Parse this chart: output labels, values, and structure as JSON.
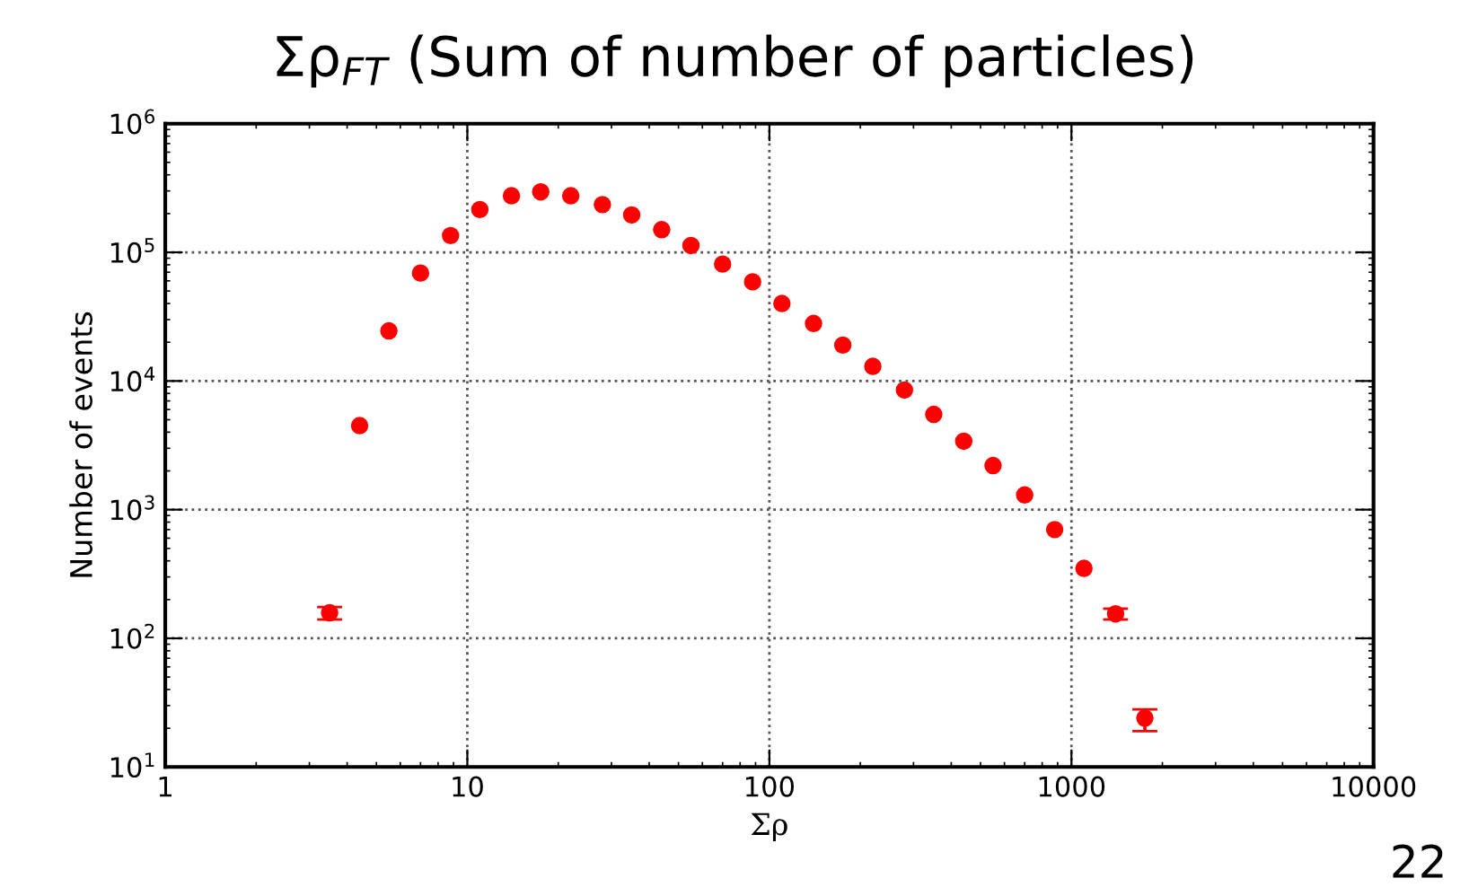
{
  "chart_data": {
    "type": "scatter",
    "title": "Σρ$_{FT}$ (Sum of number of particles)",
    "xlabel": "Σρ",
    "ylabel": "Number of events",
    "x": [
      3.5,
      4.4,
      5.5,
      7,
      8.8,
      11,
      14,
      17.5,
      22,
      28,
      35,
      44,
      55,
      70,
      88,
      110,
      140,
      175,
      220,
      280,
      350,
      440,
      550,
      700,
      880,
      1100,
      1400,
      1750
    ],
    "series": [
      {
        "color": "#ff0000",
        "values": [
          158,
          4500,
          24500,
          69000,
          135000,
          215000,
          275000,
          295000,
          275000,
          235000,
          195000,
          150000,
          113000,
          81000,
          59000,
          40000,
          28000,
          19000,
          13000,
          8500,
          5500,
          3400,
          2200,
          1300,
          700,
          350,
          155,
          24
        ],
        "errors": [
          [
            140,
            175
          ],
          null,
          null,
          null,
          null,
          null,
          null,
          null,
          null,
          null,
          null,
          null,
          null,
          null,
          null,
          null,
          null,
          null,
          null,
          null,
          null,
          null,
          null,
          null,
          null,
          null,
          [
            140,
            170
          ],
          [
            19,
            28
          ]
        ]
      }
    ],
    "log": "xy",
    "xlim": [
      1,
      10000
    ],
    "xticks": [
      1,
      10,
      100,
      1000,
      10000
    ],
    "ylim": [
      10,
      1000000
    ],
    "yticks": [
      {
        "value": 10,
        "label": "10$^{1}$"
      },
      {
        "value": 100,
        "label": "10$^{2}$"
      },
      {
        "value": 1000,
        "label": "10$^{3}$"
      },
      {
        "value": 10000,
        "label": "10$^{4}$"
      },
      {
        "value": 100000,
        "label": "10$^{5}$"
      },
      {
        "value": 1000000,
        "label": "10$^{6}$"
      }
    ],
    "grid": true,
    "marker": "circle",
    "annotations": [
      "22"
    ]
  }
}
